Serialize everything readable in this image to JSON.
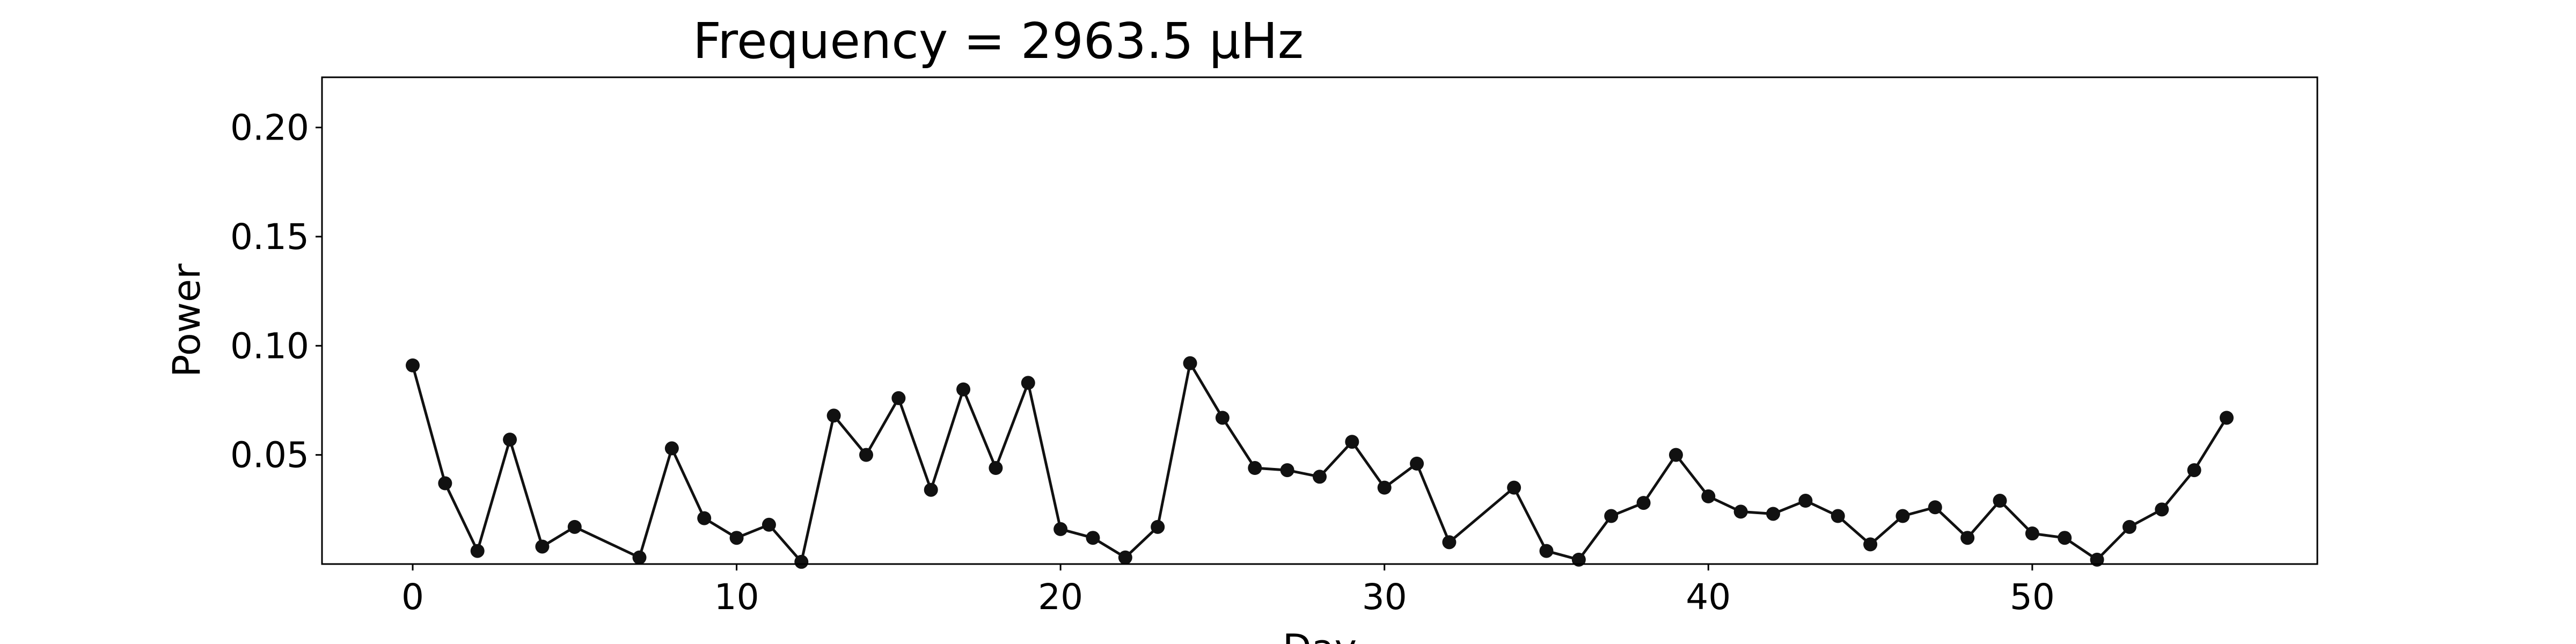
{
  "chart_data": {
    "type": "line",
    "title": "Frequency = 2963.5 μHz",
    "xlabel": "Day",
    "ylabel": "Power",
    "x": [
      0,
      1,
      2,
      3,
      4,
      5,
      7,
      8,
      9,
      10,
      11,
      12,
      13,
      14,
      15,
      16,
      17,
      18,
      19,
      20,
      21,
      22,
      23,
      24,
      25,
      26,
      27,
      28,
      29,
      30,
      31,
      32,
      34,
      35,
      36,
      37,
      38,
      39,
      40,
      41,
      42,
      43,
      44,
      45,
      46,
      47,
      48,
      49,
      50,
      51,
      52,
      53,
      54,
      55,
      56
    ],
    "series": [
      {
        "name": "Power",
        "color": "#111111",
        "values": [
          0.091,
          0.037,
          0.006,
          0.057,
          0.008,
          0.017,
          0.003,
          0.053,
          0.021,
          0.012,
          0.018,
          0.001,
          0.068,
          0.05,
          0.076,
          0.034,
          0.08,
          0.044,
          0.083,
          0.016,
          0.012,
          0.003,
          0.017,
          0.092,
          0.067,
          0.044,
          0.043,
          0.04,
          0.056,
          0.035,
          0.046,
          0.01,
          0.035,
          0.006,
          0.002,
          0.022,
          0.028,
          0.05,
          0.031,
          0.024,
          0.023,
          0.029,
          0.022,
          0.009,
          0.022,
          0.026,
          0.012,
          0.029,
          0.014,
          0.012,
          0.002,
          0.017,
          0.025,
          0.043,
          0.067
        ]
      }
    ],
    "xlim": [
      -2.8,
      58.8
    ],
    "ylim": [
      0,
      0.223
    ],
    "xticks": [
      0,
      10,
      20,
      30,
      40,
      50
    ],
    "yticks": [
      0.05,
      {
        "value": 0.1,
        "label": "0.10"
      },
      0.15,
      {
        "value": 0.2,
        "label": "0.20"
      }
    ],
    "grid": false
  }
}
